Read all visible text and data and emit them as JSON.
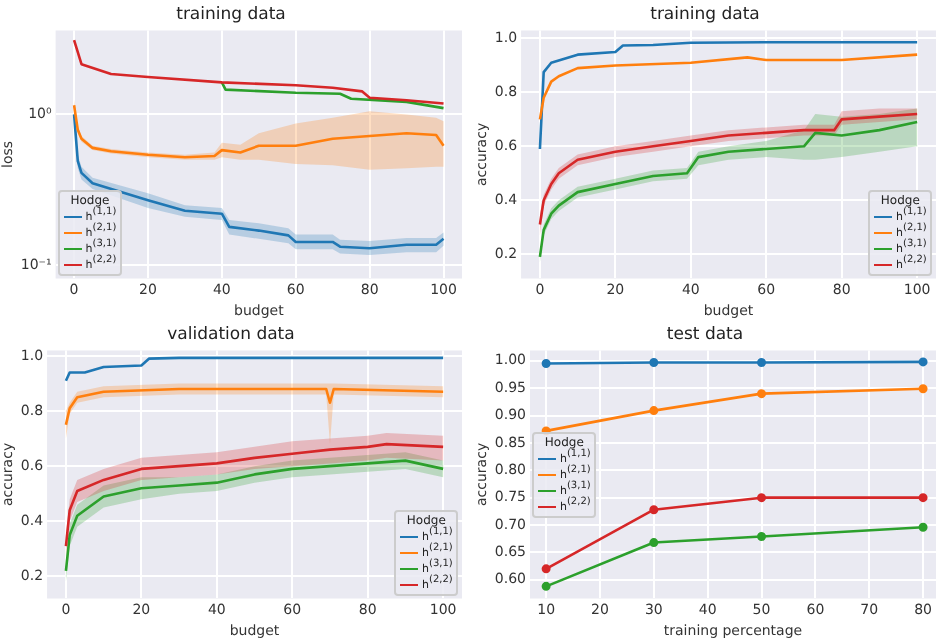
{
  "chart_data": [
    {
      "type": "line",
      "title": "training data",
      "xlabel": "budget",
      "ylabel": "loss",
      "legend_title": "Hodge",
      "legend": "bottom left",
      "grid": true,
      "log": "y",
      "xlim": [
        -5,
        105
      ],
      "xticks": [
        0,
        20,
        40,
        60,
        80,
        100
      ],
      "ylim": [
        0.082,
        3.6
      ],
      "yticks": [
        {
          "value": 0.1,
          "label": "10⁻¹"
        },
        {
          "value": 1,
          "label": "10⁰"
        }
      ],
      "series": [
        {
          "name": "h$^{(1,1)}$",
          "color": "#1f77b4",
          "x": [
            0,
            1,
            2,
            5,
            20,
            30,
            40,
            42,
            50,
            58,
            60,
            70,
            72,
            80,
            90,
            98,
            100
          ],
          "values": [
            1.0,
            0.49,
            0.41,
            0.35,
            0.27,
            0.23,
            0.22,
            0.18,
            0.17,
            0.158,
            0.143,
            0.143,
            0.133,
            0.13,
            0.137,
            0.137,
            0.15
          ],
          "lower": [
            0.9,
            0.44,
            0.37,
            0.32,
            0.24,
            0.21,
            0.2,
            0.16,
            0.15,
            0.14,
            0.128,
            0.128,
            0.12,
            0.117,
            0.122,
            0.122,
            0.135
          ],
          "upper": [
            1.1,
            0.54,
            0.45,
            0.38,
            0.3,
            0.25,
            0.24,
            0.2,
            0.19,
            0.176,
            0.16,
            0.16,
            0.148,
            0.145,
            0.152,
            0.152,
            0.165
          ]
        },
        {
          "name": "h$^{(2,1)}$",
          "color": "#ff7f0e",
          "x": [
            0,
            1,
            2,
            5,
            10,
            20,
            30,
            38,
            40,
            45,
            50,
            60,
            70,
            80,
            90,
            98,
            100
          ],
          "values": [
            1.15,
            0.79,
            0.69,
            0.6,
            0.57,
            0.54,
            0.52,
            0.53,
            0.58,
            0.56,
            0.62,
            0.62,
            0.69,
            0.72,
            0.75,
            0.73,
            0.62
          ],
          "lower": [
            1.05,
            0.75,
            0.66,
            0.58,
            0.55,
            0.52,
            0.5,
            0.5,
            0.52,
            0.5,
            0.5,
            0.47,
            0.46,
            0.43,
            0.44,
            0.45,
            0.45
          ],
          "upper": [
            1.25,
            0.83,
            0.72,
            0.62,
            0.59,
            0.56,
            0.54,
            0.56,
            0.65,
            0.63,
            0.75,
            0.87,
            0.95,
            1.05,
            1.0,
            0.95,
            0.9
          ]
        },
        {
          "name": "h$^{(3,1)}$",
          "color": "#2ca02c",
          "x": [
            40,
            41,
            60,
            72,
            75,
            90,
            100
          ],
          "values": [
            1.63,
            1.46,
            1.39,
            1.37,
            1.27,
            1.21,
            1.1
          ]
        },
        {
          "name": "h$^{(2,2)}$",
          "color": "#d62728",
          "x": [
            0,
            2,
            10,
            20,
            40,
            60,
            70,
            78,
            80,
            90,
            100
          ],
          "values": [
            3.1,
            2.15,
            1.85,
            1.77,
            1.63,
            1.56,
            1.5,
            1.42,
            1.29,
            1.24,
            1.18
          ]
        }
      ]
    },
    {
      "type": "line",
      "title": "training data",
      "xlabel": "budget",
      "ylabel": "accuracy",
      "legend_title": "Hodge",
      "legend": "bottom right",
      "grid": true,
      "xlim": [
        -5,
        105
      ],
      "xticks": [
        0,
        20,
        40,
        60,
        80,
        100
      ],
      "ylim": [
        0.11,
        1.03
      ],
      "yticks": [
        0.2,
        0.4,
        0.6,
        0.8,
        {
          "value": 1,
          "label": "1.0"
        }
      ],
      "series": [
        {
          "name": "h$^{(1,1)}$",
          "color": "#1f77b4",
          "x": [
            0,
            1,
            3,
            10,
            20,
            22,
            30,
            40,
            60,
            100
          ],
          "values": [
            0.59,
            0.875,
            0.91,
            0.94,
            0.95,
            0.974,
            0.976,
            0.984,
            0.986,
            0.986
          ]
        },
        {
          "name": "h$^{(2,1)}$",
          "color": "#ff7f0e",
          "x": [
            0,
            1,
            3,
            5,
            10,
            20,
            40,
            55,
            60,
            80,
            100
          ],
          "values": [
            0.7,
            0.78,
            0.84,
            0.86,
            0.89,
            0.9,
            0.91,
            0.93,
            0.92,
            0.92,
            0.94
          ]
        },
        {
          "name": "h$^{(3,1)}$",
          "color": "#2ca02c",
          "x": [
            0,
            1,
            3,
            5,
            10,
            20,
            30,
            39,
            42,
            50,
            60,
            70,
            73,
            80,
            90,
            100
          ],
          "values": [
            0.19,
            0.29,
            0.35,
            0.38,
            0.43,
            0.46,
            0.49,
            0.5,
            0.56,
            0.58,
            0.59,
            0.6,
            0.65,
            0.64,
            0.66,
            0.69
          ],
          "lower": [
            0.17,
            0.27,
            0.33,
            0.36,
            0.41,
            0.44,
            0.47,
            0.48,
            0.53,
            0.55,
            0.56,
            0.55,
            0.55,
            0.56,
            0.58,
            0.6
          ],
          "upper": [
            0.21,
            0.31,
            0.37,
            0.4,
            0.45,
            0.48,
            0.51,
            0.52,
            0.58,
            0.6,
            0.62,
            0.66,
            0.72,
            0.71,
            0.72,
            0.74
          ]
        },
        {
          "name": "h$^{(2,2)}$",
          "color": "#d62728",
          "x": [
            0,
            1,
            3,
            5,
            10,
            20,
            30,
            40,
            50,
            60,
            70,
            78,
            80,
            90,
            100
          ],
          "values": [
            0.31,
            0.4,
            0.46,
            0.5,
            0.55,
            0.58,
            0.6,
            0.62,
            0.64,
            0.65,
            0.66,
            0.66,
            0.7,
            0.71,
            0.72
          ],
          "lower": [
            0.27,
            0.38,
            0.44,
            0.48,
            0.53,
            0.56,
            0.58,
            0.6,
            0.62,
            0.63,
            0.64,
            0.64,
            0.68,
            0.69,
            0.7
          ],
          "upper": [
            0.35,
            0.42,
            0.48,
            0.52,
            0.57,
            0.6,
            0.62,
            0.64,
            0.66,
            0.67,
            0.68,
            0.68,
            0.73,
            0.74,
            0.74
          ]
        }
      ]
    },
    {
      "type": "line",
      "title": "validation data",
      "xlabel": "budget",
      "ylabel": "accuracy",
      "legend_title": "Hodge",
      "legend": "bottom right",
      "grid": true,
      "xlim": [
        -5,
        105
      ],
      "xticks": [
        0,
        20,
        40,
        60,
        80,
        100
      ],
      "ylim": [
        0.12,
        1.02
      ],
      "yticks": [
        0.2,
        0.4,
        0.6,
        0.8,
        {
          "value": 1,
          "label": "1.0"
        }
      ],
      "series": [
        {
          "name": "h$^{(1,1)}$",
          "color": "#1f77b4",
          "x": [
            0,
            1,
            5,
            10,
            20,
            22,
            30,
            100
          ],
          "values": [
            0.91,
            0.94,
            0.94,
            0.96,
            0.965,
            0.99,
            0.993,
            0.993
          ]
        },
        {
          "name": "h$^{(2,1)}$",
          "color": "#ff7f0e",
          "x": [
            0,
            1,
            3,
            10,
            30,
            60,
            69,
            70,
            71,
            100
          ],
          "values": [
            0.75,
            0.81,
            0.85,
            0.87,
            0.88,
            0.88,
            0.88,
            0.83,
            0.88,
            0.87
          ],
          "lower": [
            0.7,
            0.79,
            0.83,
            0.85,
            0.86,
            0.86,
            0.86,
            0.68,
            0.86,
            0.85
          ],
          "upper": [
            0.8,
            0.83,
            0.87,
            0.89,
            0.9,
            0.9,
            0.9,
            0.9,
            0.9,
            0.89
          ]
        },
        {
          "name": "h$^{(3,1)}$",
          "color": "#2ca02c",
          "x": [
            0,
            1,
            3,
            10,
            20,
            30,
            40,
            50,
            60,
            70,
            80,
            90,
            100
          ],
          "values": [
            0.22,
            0.35,
            0.42,
            0.49,
            0.52,
            0.53,
            0.54,
            0.57,
            0.59,
            0.6,
            0.61,
            0.62,
            0.59
          ],
          "lower": [
            0.18,
            0.31,
            0.38,
            0.45,
            0.48,
            0.5,
            0.51,
            0.54,
            0.56,
            0.57,
            0.58,
            0.59,
            0.56
          ],
          "upper": [
            0.26,
            0.39,
            0.46,
            0.53,
            0.56,
            0.56,
            0.57,
            0.6,
            0.62,
            0.63,
            0.64,
            0.65,
            0.62
          ]
        },
        {
          "name": "h$^{(2,2)}$",
          "color": "#d62728",
          "x": [
            0,
            1,
            3,
            10,
            20,
            30,
            40,
            50,
            60,
            70,
            80,
            85,
            100
          ],
          "values": [
            0.31,
            0.44,
            0.51,
            0.55,
            0.59,
            0.6,
            0.61,
            0.63,
            0.645,
            0.66,
            0.67,
            0.68,
            0.67
          ],
          "lower": [
            0.27,
            0.4,
            0.47,
            0.51,
            0.55,
            0.56,
            0.57,
            0.59,
            0.6,
            0.61,
            0.62,
            0.63,
            0.62
          ],
          "upper": [
            0.35,
            0.48,
            0.55,
            0.59,
            0.63,
            0.64,
            0.65,
            0.67,
            0.69,
            0.7,
            0.71,
            0.72,
            0.71
          ]
        }
      ]
    },
    {
      "type": "line",
      "title": "test data",
      "xlabel": "training percentage",
      "ylabel": "accuracy",
      "legend_title": "Hodge",
      "legend": "left",
      "grid": true,
      "marker": "circle",
      "xlim": [
        7,
        82.4
      ],
      "xticks": [
        10,
        20,
        30,
        40,
        50,
        60,
        70,
        80
      ],
      "ylim": [
        0.566,
        1.019
      ],
      "yticks": [
        {
          "value": 0.6,
          "label": "0.60"
        },
        {
          "value": 0.65,
          "label": "0.65"
        },
        {
          "value": 0.7,
          "label": "0.70"
        },
        {
          "value": 0.75,
          "label": "0.75"
        },
        {
          "value": 0.8,
          "label": "0.80"
        },
        {
          "value": 0.85,
          "label": "0.85"
        },
        {
          "value": 0.9,
          "label": "0.90"
        },
        {
          "value": 0.95,
          "label": "0.95"
        },
        {
          "value": 1,
          "label": "1.00"
        }
      ],
      "series": [
        {
          "name": "h$^{(1,1)}$",
          "color": "#1f77b4",
          "x": [
            10,
            30,
            50,
            80
          ],
          "values": [
            0.995,
            0.997,
            0.997,
            0.998
          ]
        },
        {
          "name": "h$^{(2,1)}$",
          "color": "#ff7f0e",
          "x": [
            10,
            30,
            50,
            80
          ],
          "values": [
            0.872,
            0.909,
            0.94,
            0.949
          ]
        },
        {
          "name": "h$^{(3,1)}$",
          "color": "#2ca02c",
          "x": [
            10,
            30,
            50,
            80
          ],
          "values": [
            0.588,
            0.668,
            0.679,
            0.696
          ]
        },
        {
          "name": "h$^{(2,2)}$",
          "color": "#d62728",
          "x": [
            10,
            30,
            50,
            80
          ],
          "values": [
            0.62,
            0.728,
            0.75,
            0.75
          ]
        }
      ]
    }
  ]
}
